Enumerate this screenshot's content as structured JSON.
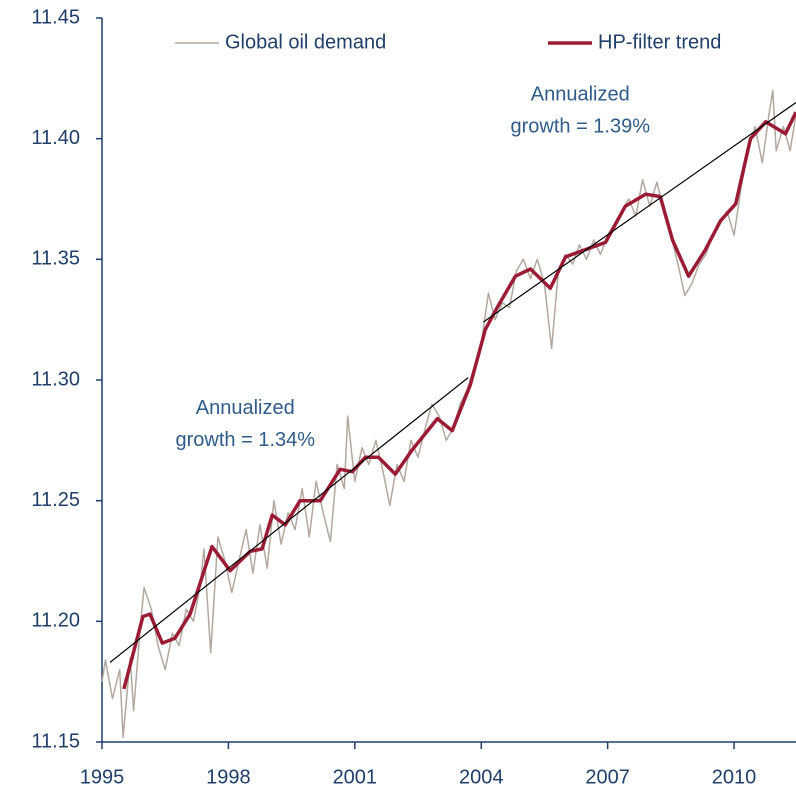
{
  "chart_data": {
    "type": "line",
    "xlim": [
      1995,
      2011.47
    ],
    "ylim": [
      11.15,
      11.45
    ],
    "xticks": [
      1995,
      1998,
      2001,
      2004,
      2007,
      2010
    ],
    "yticks": [
      11.15,
      {
        "value": 11.2,
        "label": "11.20"
      },
      11.25,
      {
        "value": 11.3,
        "label": "11.30"
      },
      11.35,
      {
        "value": 11.4,
        "label": "11.40"
      },
      11.45
    ],
    "series": [
      {
        "name": "Global oil demand",
        "color": "#b3a89e",
        "width": 1.5,
        "x": [
          1995.0,
          1995.08,
          1995.25,
          1995.42,
          1995.5,
          1995.67,
          1995.75,
          1995.92,
          1996.0,
          1996.17,
          1996.33,
          1996.5,
          1996.67,
          1996.83,
          1997.0,
          1997.17,
          1997.33,
          1997.42,
          1997.58,
          1997.75,
          1997.92,
          1998.08,
          1998.25,
          1998.42,
          1998.58,
          1998.75,
          1998.92,
          1999.08,
          1999.25,
          1999.42,
          1999.58,
          1999.75,
          1999.92,
          2000.08,
          2000.25,
          2000.42,
          2000.58,
          2000.75,
          2000.83,
          2001.0,
          2001.17,
          2001.33,
          2001.5,
          2001.67,
          2001.83,
          2002.0,
          2002.17,
          2002.33,
          2002.5,
          2002.67,
          2002.83,
          2003.0,
          2003.17,
          2003.33,
          2003.5,
          2003.67,
          2003.83,
          2004.0,
          2004.17,
          2004.33,
          2004.5,
          2004.67,
          2004.83,
          2005.0,
          2005.17,
          2005.33,
          2005.5,
          2005.67,
          2005.83,
          2006.0,
          2006.17,
          2006.33,
          2006.5,
          2006.67,
          2006.83,
          2007.0,
          2007.17,
          2007.33,
          2007.5,
          2007.67,
          2007.83,
          2008.0,
          2008.17,
          2008.33,
          2008.5,
          2008.67,
          2008.83,
          2009.0,
          2009.17,
          2009.33,
          2009.5,
          2009.67,
          2009.83,
          2010.0,
          2010.17,
          2010.33,
          2010.5,
          2010.67,
          2010.83,
          2010.92,
          2011.0,
          2011.17,
          2011.33,
          2011.47
        ],
        "values": [
          11.175,
          11.184,
          11.168,
          11.18,
          11.152,
          11.185,
          11.163,
          11.2,
          11.214,
          11.205,
          11.19,
          11.18,
          11.195,
          11.19,
          11.205,
          11.2,
          11.215,
          11.23,
          11.187,
          11.235,
          11.225,
          11.212,
          11.225,
          11.238,
          11.22,
          11.24,
          11.222,
          11.25,
          11.232,
          11.245,
          11.238,
          11.255,
          11.235,
          11.258,
          11.245,
          11.233,
          11.265,
          11.255,
          11.285,
          11.258,
          11.272,
          11.265,
          11.275,
          11.262,
          11.248,
          11.265,
          11.258,
          11.275,
          11.268,
          11.28,
          11.29,
          11.285,
          11.275,
          11.28,
          11.29,
          11.296,
          11.305,
          11.315,
          11.336,
          11.325,
          11.332,
          11.33,
          11.345,
          11.35,
          11.342,
          11.35,
          11.34,
          11.313,
          11.345,
          11.352,
          11.348,
          11.356,
          11.35,
          11.358,
          11.352,
          11.36,
          11.365,
          11.37,
          11.375,
          11.368,
          11.383,
          11.372,
          11.382,
          11.37,
          11.36,
          11.348,
          11.335,
          11.34,
          11.348,
          11.352,
          11.36,
          11.365,
          11.37,
          11.36,
          11.38,
          11.395,
          11.405,
          11.39,
          11.41,
          11.42,
          11.395,
          11.405,
          11.395,
          11.41
        ]
      },
      {
        "name": "HP-filter trend",
        "color": "#9b1b35",
        "width": 3.5,
        "x": [
          1995.52,
          1995.97,
          1996.14,
          1996.43,
          1996.73,
          1997.09,
          1997.61,
          1998.04,
          1998.52,
          1998.8,
          1999.04,
          1999.35,
          1999.7,
          2000.18,
          2000.65,
          2000.94,
          2001.25,
          2001.56,
          2001.96,
          2002.36,
          2002.96,
          2003.31,
          2003.74,
          2004.1,
          2004.41,
          2004.81,
          2005.17,
          2005.64,
          2006.0,
          2006.47,
          2006.95,
          2007.42,
          2007.9,
          2008.25,
          2008.54,
          2008.92,
          2009.32,
          2009.68,
          2010.04,
          2010.39,
          2010.75,
          2011.22,
          2011.47
        ],
        "values": [
          11.172,
          11.202,
          11.203,
          11.191,
          11.193,
          11.203,
          11.231,
          11.221,
          11.229,
          11.23,
          11.244,
          11.24,
          11.25,
          11.25,
          11.263,
          11.262,
          11.268,
          11.268,
          11.261,
          11.271,
          11.284,
          11.279,
          11.298,
          11.321,
          11.331,
          11.343,
          11.346,
          11.338,
          11.351,
          11.354,
          11.357,
          11.372,
          11.377,
          11.376,
          11.358,
          11.343,
          11.354,
          11.366,
          11.373,
          11.4,
          11.407,
          11.402,
          11.411
        ]
      },
      {
        "color": "#000000",
        "width": 1.2,
        "x": [
          1995.19,
          2003.69
        ],
        "values": [
          11.183,
          11.301
        ]
      },
      {
        "color": "#000000",
        "width": 1.2,
        "x": [
          2004.05,
          2011.47
        ],
        "values": [
          11.324,
          11.415
        ]
      }
    ],
    "annotations": [
      {
        "lines": [
          "Annualized",
          "growth  = 1.34%"
        ],
        "x": 1998.4,
        "y": 11.288
      },
      {
        "lines": [
          "Annualized",
          "growth  = 1.39%"
        ],
        "x": 2006.35,
        "y": 11.418
      }
    ]
  }
}
